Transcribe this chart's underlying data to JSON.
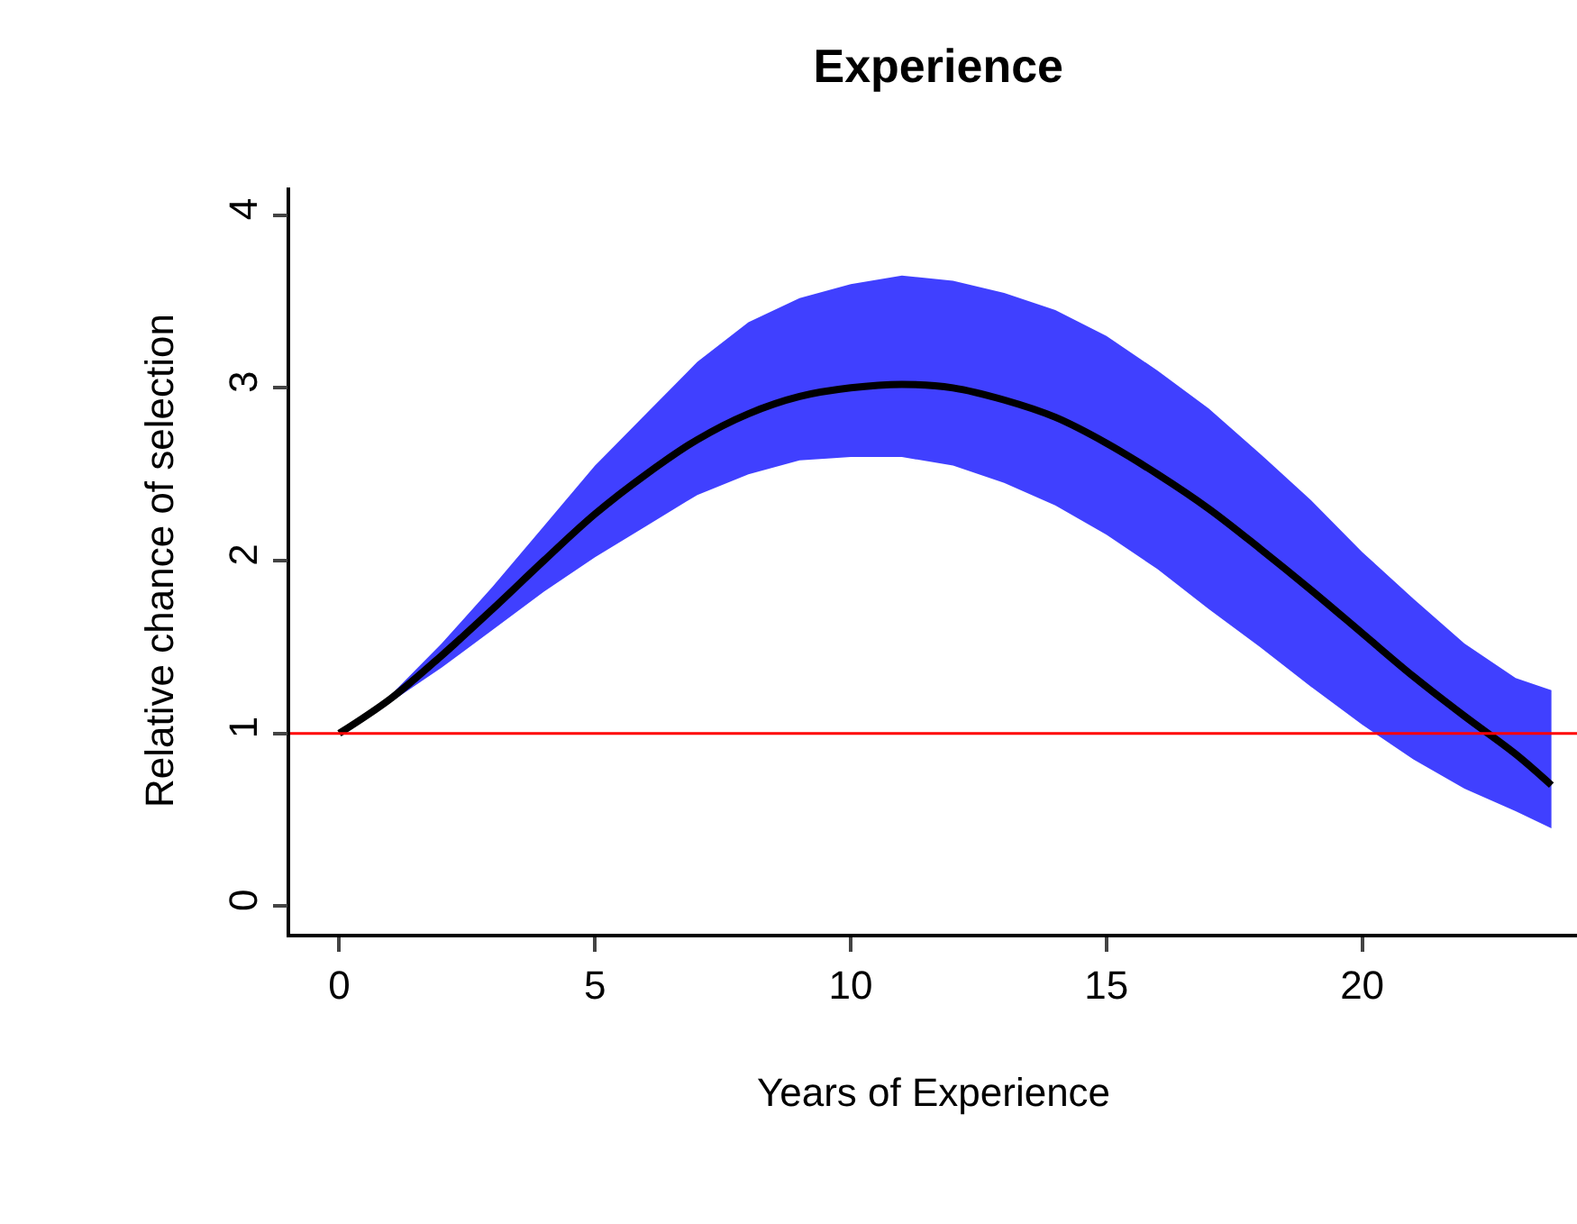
{
  "chart_data": {
    "type": "line",
    "title": "Experience",
    "xlabel": "Years of Experience",
    "ylabel": "Relative chance of selection",
    "x": [
      0,
      1,
      2,
      3,
      4,
      5,
      6,
      7,
      8,
      9,
      10,
      11,
      12,
      13,
      14,
      15,
      16,
      17,
      18,
      19,
      20,
      21,
      22,
      23,
      23.7
    ],
    "series": [
      {
        "color": "#000000",
        "values": [
          1.0,
          1.2,
          1.45,
          1.72,
          2.0,
          2.27,
          2.5,
          2.7,
          2.85,
          2.95,
          3.0,
          3.02,
          3.0,
          2.93,
          2.83,
          2.68,
          2.5,
          2.3,
          2.07,
          1.83,
          1.58,
          1.33,
          1.1,
          0.88,
          0.7
        ],
        "upper": [
          1.0,
          1.22,
          1.52,
          1.85,
          2.2,
          2.55,
          2.85,
          3.15,
          3.38,
          3.52,
          3.6,
          3.65,
          3.62,
          3.55,
          3.45,
          3.3,
          3.1,
          2.88,
          2.62,
          2.35,
          2.05,
          1.78,
          1.52,
          1.32,
          1.25
        ],
        "lower": [
          1.0,
          1.18,
          1.38,
          1.6,
          1.82,
          2.02,
          2.2,
          2.38,
          2.5,
          2.58,
          2.6,
          2.6,
          2.55,
          2.45,
          2.32,
          2.15,
          1.95,
          1.72,
          1.5,
          1.27,
          1.05,
          0.85,
          0.68,
          0.55,
          0.45
        ]
      }
    ],
    "ref_lines": [
      {
        "axis": "y",
        "value": 1,
        "color": "#ff0000"
      }
    ],
    "xlim": [
      -0.96,
      24.2
    ],
    "ylim": [
      -0.16,
      4.16
    ],
    "xticks": [
      0,
      5,
      10,
      15,
      20
    ],
    "yticks": [
      0,
      1,
      2,
      3,
      4
    ],
    "marker": "none",
    "line_style": "solid"
  }
}
